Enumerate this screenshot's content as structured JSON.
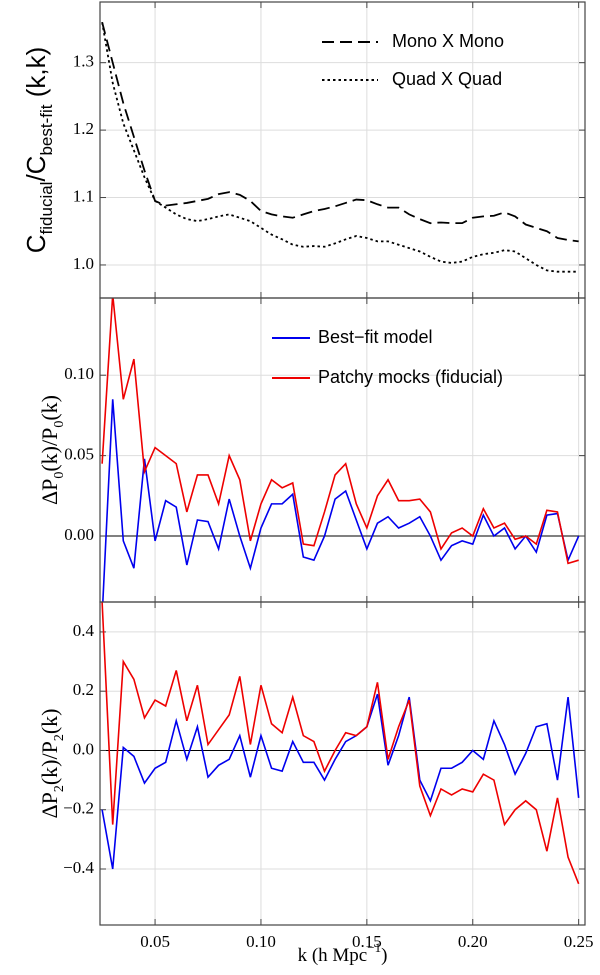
{
  "chart_data": [
    {
      "type": "line",
      "ylabel": [
        "C",
        "fiducial",
        "/C",
        "best-fit",
        " (k,k)"
      ],
      "x": [
        0.025,
        0.03,
        0.035,
        0.04,
        0.045,
        0.05,
        0.055,
        0.06,
        0.065,
        0.07,
        0.075,
        0.08,
        0.085,
        0.09,
        0.095,
        0.1,
        0.105,
        0.11,
        0.115,
        0.12,
        0.125,
        0.13,
        0.135,
        0.14,
        0.145,
        0.15,
        0.155,
        0.16,
        0.165,
        0.17,
        0.175,
        0.18,
        0.185,
        0.19,
        0.195,
        0.2,
        0.205,
        0.21,
        0.215,
        0.22,
        0.225,
        0.23,
        0.235,
        0.24,
        0.245,
        0.25
      ],
      "series": [
        {
          "name": "Mono X Mono",
          "color": "#000000",
          "dash": "dashed",
          "values": [
            1.36,
            1.3,
            1.24,
            1.19,
            1.14,
            1.095,
            1.088,
            1.09,
            1.092,
            1.095,
            1.098,
            1.105,
            1.108,
            1.104,
            1.095,
            1.08,
            1.075,
            1.072,
            1.07,
            1.075,
            1.08,
            1.083,
            1.087,
            1.092,
            1.097,
            1.096,
            1.09,
            1.085,
            1.085,
            1.075,
            1.068,
            1.062,
            1.063,
            1.062,
            1.062,
            1.07,
            1.072,
            1.073,
            1.078,
            1.072,
            1.06,
            1.055,
            1.05,
            1.04,
            1.037,
            1.035
          ]
        },
        {
          "name": "Quad X Quad",
          "color": "#000000",
          "dash": "dotted",
          "values": [
            1.36,
            1.27,
            1.21,
            1.17,
            1.13,
            1.095,
            1.085,
            1.075,
            1.068,
            1.065,
            1.068,
            1.072,
            1.075,
            1.07,
            1.065,
            1.055,
            1.045,
            1.038,
            1.03,
            1.027,
            1.028,
            1.027,
            1.032,
            1.038,
            1.043,
            1.04,
            1.035,
            1.035,
            1.03,
            1.025,
            1.02,
            1.012,
            1.005,
            1.003,
            1.005,
            1.012,
            1.016,
            1.018,
            1.022,
            1.02,
            1.01,
            1.0,
            0.992,
            0.99,
            0.99,
            0.99
          ]
        }
      ],
      "xlim": [
        0.024,
        0.253
      ],
      "xticks": [
        0.05,
        0.1,
        0.15,
        0.2,
        0.25
      ],
      "xtick_labels": false,
      "ylim": [
        0.951,
        1.39
      ],
      "yticks": [
        {
          "value": 1,
          "label": "1.0"
        },
        1.1,
        1.2,
        1.3
      ],
      "grid": true,
      "zero_line": false,
      "legend": "upper right"
    },
    {
      "type": "line",
      "ylabel": [
        "ΔP",
        "0",
        "(k)/P",
        "0",
        "(k)"
      ],
      "x": [
        0.025,
        0.03,
        0.035,
        0.04,
        0.045,
        0.05,
        0.055,
        0.06,
        0.065,
        0.07,
        0.075,
        0.08,
        0.085,
        0.09,
        0.095,
        0.1,
        0.105,
        0.11,
        0.115,
        0.12,
        0.125,
        0.13,
        0.135,
        0.14,
        0.145,
        0.15,
        0.155,
        0.16,
        0.165,
        0.17,
        0.175,
        0.18,
        0.185,
        0.19,
        0.195,
        0.2,
        0.205,
        0.21,
        0.215,
        0.22,
        0.225,
        0.23,
        0.235,
        0.24,
        0.245,
        0.25
      ],
      "series": [
        {
          "name": "Best−fit model",
          "color": "#0000ee",
          "dash": "solid",
          "values": [
            -0.05,
            0.085,
            -0.003,
            -0.02,
            0.048,
            -0.003,
            0.022,
            0.018,
            -0.018,
            0.01,
            0.009,
            -0.008,
            0.023,
            0.0,
            -0.02,
            0.005,
            0.02,
            0.02,
            0.026,
            -0.013,
            -0.015,
            0.0,
            0.023,
            0.028,
            0.01,
            -0.008,
            0.008,
            0.012,
            0.005,
            0.008,
            0.012,
            0.0,
            -0.015,
            -0.006,
            -0.003,
            -0.005,
            0.013,
            0.0,
            0.005,
            -0.008,
            0.0,
            -0.01,
            0.013,
            0.014,
            -0.015,
            0.0
          ]
        },
        {
          "name": "Patchy mocks (fiducial)",
          "color": "#ee0000",
          "dash": "solid",
          "values": [
            0.045,
            0.15,
            0.085,
            0.11,
            0.04,
            0.055,
            0.05,
            0.045,
            0.015,
            0.038,
            0.038,
            0.02,
            0.05,
            0.035,
            -0.003,
            0.02,
            0.035,
            0.03,
            0.033,
            -0.005,
            -0.006,
            0.015,
            0.038,
            0.045,
            0.02,
            0.005,
            0.025,
            0.035,
            0.022,
            0.022,
            0.023,
            0.015,
            -0.008,
            0.002,
            0.005,
            0.0,
            0.017,
            0.005,
            0.008,
            -0.002,
            0.0,
            -0.005,
            0.016,
            0.015,
            -0.017,
            -0.015
          ]
        }
      ],
      "xlim": [
        0.024,
        0.253
      ],
      "xticks": [
        0.05,
        0.1,
        0.15,
        0.2,
        0.25
      ],
      "xtick_labels": false,
      "ylim": [
        -0.041,
        0.148
      ],
      "yticks": [
        {
          "value": 0,
          "label": "0.00"
        },
        {
          "value": 0.05,
          "label": "0.05"
        },
        {
          "value": 0.1,
          "label": "0.10"
        }
      ],
      "grid": true,
      "zero_line": true,
      "legend": "upper right"
    },
    {
      "type": "line",
      "ylabel": [
        "ΔP",
        "2",
        "(k)/P",
        "2",
        "(k)"
      ],
      "xlabel": [
        "k (h Mpc",
        "−1",
        ")"
      ],
      "x": [
        0.025,
        0.03,
        0.035,
        0.04,
        0.045,
        0.05,
        0.055,
        0.06,
        0.065,
        0.07,
        0.075,
        0.08,
        0.085,
        0.09,
        0.095,
        0.1,
        0.105,
        0.11,
        0.115,
        0.12,
        0.125,
        0.13,
        0.135,
        0.14,
        0.145,
        0.15,
        0.155,
        0.16,
        0.165,
        0.17,
        0.175,
        0.18,
        0.185,
        0.19,
        0.195,
        0.2,
        0.205,
        0.21,
        0.215,
        0.22,
        0.225,
        0.23,
        0.235,
        0.24,
        0.245,
        0.25
      ],
      "series": [
        {
          "color": "#0000ee",
          "dash": "solid",
          "values": [
            -0.2,
            -0.4,
            0.01,
            -0.02,
            -0.11,
            -0.06,
            -0.04,
            0.1,
            -0.03,
            0.08,
            -0.09,
            -0.05,
            -0.03,
            0.05,
            -0.09,
            0.05,
            -0.06,
            -0.07,
            0.03,
            -0.04,
            -0.04,
            -0.1,
            -0.03,
            0.03,
            0.05,
            0.08,
            0.19,
            -0.05,
            0.05,
            0.18,
            -0.1,
            -0.17,
            -0.06,
            -0.06,
            -0.04,
            0.0,
            -0.03,
            0.1,
            0.02,
            -0.08,
            -0.01,
            0.08,
            0.09,
            -0.1,
            0.18,
            -0.16
          ]
        },
        {
          "color": "#ee0000",
          "dash": "solid",
          "values": [
            0.5,
            -0.25,
            0.3,
            0.24,
            0.11,
            0.17,
            0.15,
            0.27,
            0.1,
            0.22,
            0.02,
            0.07,
            0.12,
            0.25,
            0.02,
            0.22,
            0.09,
            0.06,
            0.18,
            0.05,
            0.03,
            -0.07,
            0.0,
            0.06,
            0.05,
            0.08,
            0.23,
            -0.03,
            0.08,
            0.17,
            -0.12,
            -0.22,
            -0.13,
            -0.15,
            -0.13,
            -0.14,
            -0.08,
            -0.1,
            -0.25,
            -0.2,
            -0.17,
            -0.2,
            -0.34,
            -0.16,
            -0.36,
            -0.45
          ]
        }
      ],
      "xlim": [
        0.024,
        0.253
      ],
      "xticks": [
        0.05,
        {
          "value": 0.1,
          "label": "0.10"
        },
        0.15,
        {
          "value": 0.2,
          "label": "0.20"
        },
        0.25
      ],
      "xtick_labels": true,
      "ylim": [
        -0.589,
        0.501
      ],
      "yticks": [
        {
          "value": -0.4,
          "label": "−0.4"
        },
        {
          "value": -0.2,
          "label": "−0.2"
        },
        {
          "value": 0,
          "label": "0.0"
        },
        {
          "value": 0.2,
          "label": "0.2"
        },
        {
          "value": 0.4,
          "label": "0.4"
        }
      ],
      "grid": true,
      "zero_line": true
    }
  ]
}
